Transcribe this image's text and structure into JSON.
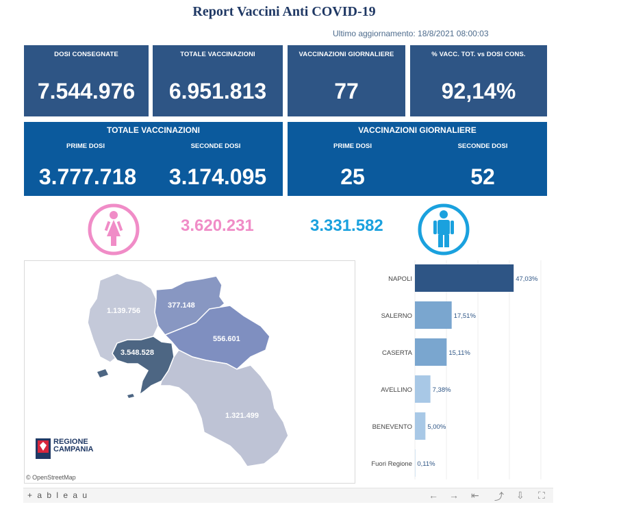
{
  "header": {
    "title": "Report Vaccini Anti COVID-19",
    "updated": "Ultimo aggiornamento: 18/8/2021  08:00:03"
  },
  "kpis": [
    {
      "label": "DOSI  CONSEGNATE",
      "value": "7.544.976"
    },
    {
      "label": "TOTALE VACCINAZIONI",
      "value": "6.951.813"
    },
    {
      "label": "VACCINAZIONI GIORNALIERE",
      "value": "77"
    },
    {
      "label": "% VACC. TOT. vs DOSI CONS.",
      "value": "92,14%"
    }
  ],
  "totale_vaccinazioni": {
    "title": "TOTALE VACCINAZIONI",
    "prime_label": "PRIME DOSI",
    "prime_value": "3.777.718",
    "seconde_label": "SECONDE DOSI",
    "seconde_value": "3.174.095"
  },
  "vaccinazioni_giornaliere": {
    "title": "VACCINAZIONI GIORNALIERE",
    "prime_label": "PRIME DOSI",
    "prime_value": "25",
    "seconde_label": "SECONDE DOSI",
    "seconde_value": "52"
  },
  "gender": {
    "female_value": "3.620.231",
    "male_value": "3.331.582",
    "female_color": "#f08cc7",
    "male_color": "#1aa1de"
  },
  "map": {
    "labels": {
      "caserta": "1.139.756",
      "benevento": "377.148",
      "avellino": "556.601",
      "napoli": "3.548.528",
      "salerno": "1.321.499"
    },
    "attribution": "© OpenStreetMap",
    "logo_line1": "REGIONE",
    "logo_line2": "CAMPANIA"
  },
  "chart_data": {
    "type": "bar",
    "orientation": "horizontal",
    "categories": [
      "NAPOLI",
      "SALERNO",
      "CASERTA",
      "AVELLINO",
      "BENEVENTO",
      "Fuori Regione"
    ],
    "values": [
      47.03,
      17.51,
      15.11,
      7.38,
      5.0,
      0.11
    ],
    "labels": [
      "47,03%",
      "17,51%",
      "15,11%",
      "7,38%",
      "5,00%",
      "0,11%"
    ],
    "colors": [
      "#2e5585",
      "#7aa6cf",
      "#7aa6cf",
      "#a8c8e6",
      "#a8c8e6",
      "#a8c8e6"
    ],
    "xlim": [
      0,
      60
    ]
  },
  "toolbar": {
    "logo": "+ a b l e a u",
    "icons": [
      "back-icon",
      "forward-icon",
      "reset-icon",
      "share-icon",
      "download-icon",
      "fullscreen-icon"
    ]
  }
}
